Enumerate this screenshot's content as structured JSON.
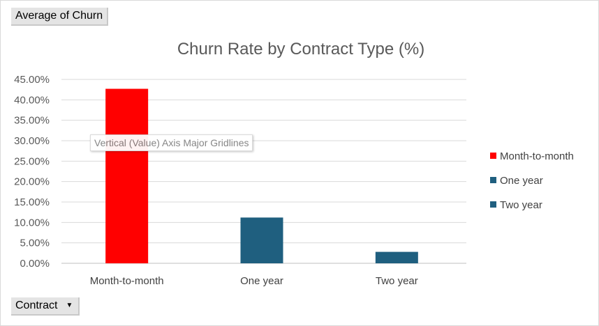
{
  "pivot": {
    "value_field": "Average of Churn",
    "row_field": "Contract"
  },
  "tooltip": "Vertical (Value) Axis Major Gridlines",
  "chart_data": {
    "type": "bar",
    "title": "Churn Rate by Contract Type (%)",
    "categories": [
      "Month-to-month",
      "One year",
      "Two year"
    ],
    "values": [
      0.427,
      0.112,
      0.028
    ],
    "colors": [
      "#ff0000",
      "#1f5f7f",
      "#1f5f7f"
    ],
    "legend": [
      "Month-to-month",
      "One year",
      "Two year"
    ],
    "legend_position": "right",
    "ylim": [
      0,
      0.45
    ],
    "yticks": [
      "0.00%",
      "5.00%",
      "10.00%",
      "15.00%",
      "20.00%",
      "25.00%",
      "30.00%",
      "35.00%",
      "40.00%",
      "45.00%"
    ],
    "grid": true,
    "xlabel": "",
    "ylabel": ""
  }
}
